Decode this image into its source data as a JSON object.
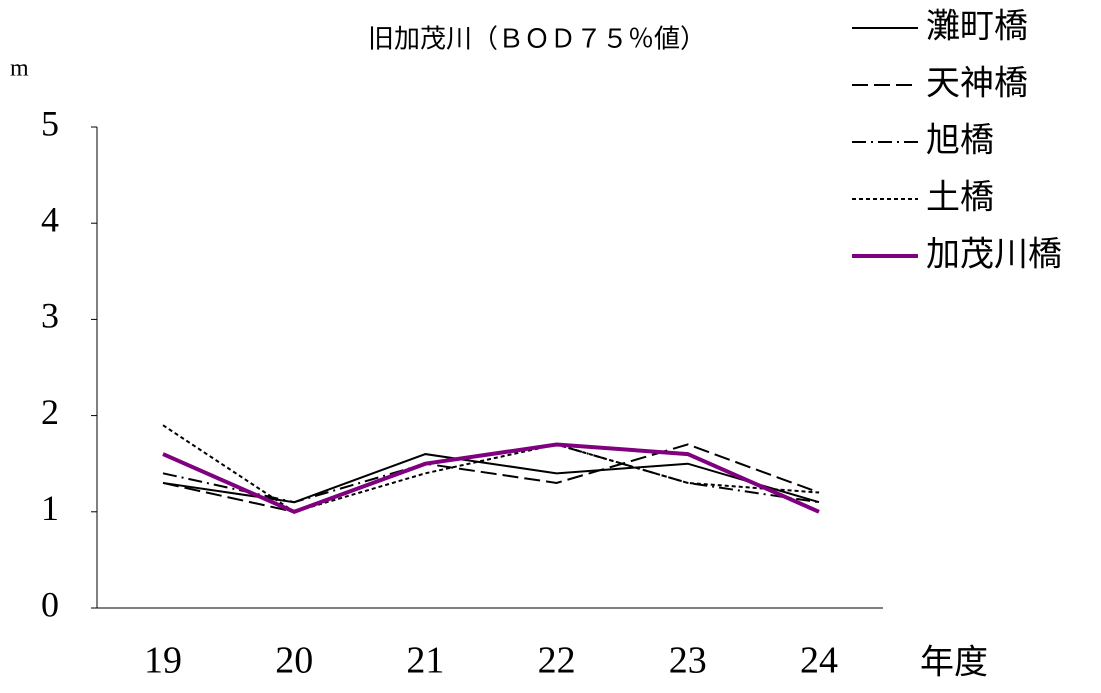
{
  "chart_data": {
    "type": "line",
    "title": "旧加茂川（ＢＯＤ７５％値）",
    "y_label": "m",
    "x_label": "年度",
    "categories": [
      "19",
      "20",
      "21",
      "22",
      "23",
      "24"
    ],
    "series": [
      {
        "name": "灘町橋",
        "color": "#000000",
        "dash": "solid",
        "values": [
          1.3,
          1.1,
          1.6,
          1.4,
          1.5,
          1.1
        ]
      },
      {
        "name": "天神橋",
        "color": "#000000",
        "dash": "dashed",
        "values": [
          1.3,
          1.0,
          1.5,
          1.3,
          1.7,
          1.2
        ]
      },
      {
        "name": "旭橋",
        "color": "#000000",
        "dash": "dashdot",
        "values": [
          1.4,
          1.1,
          1.5,
          1.7,
          1.3,
          1.1
        ]
      },
      {
        "name": "土橋",
        "color": "#000000",
        "dash": "dotted",
        "values": [
          1.9,
          1.0,
          1.4,
          1.7,
          1.3,
          1.2
        ]
      },
      {
        "name": "加茂川橋",
        "color": "#800080",
        "dash": "solid",
        "values": [
          1.6,
          1.0,
          1.5,
          1.7,
          1.6,
          1.0
        ]
      }
    ],
    "ylim": [
      0,
      5
    ],
    "yticks": [
      0,
      1,
      2,
      3,
      4,
      5
    ],
    "grid": false,
    "legend": "top-right"
  }
}
